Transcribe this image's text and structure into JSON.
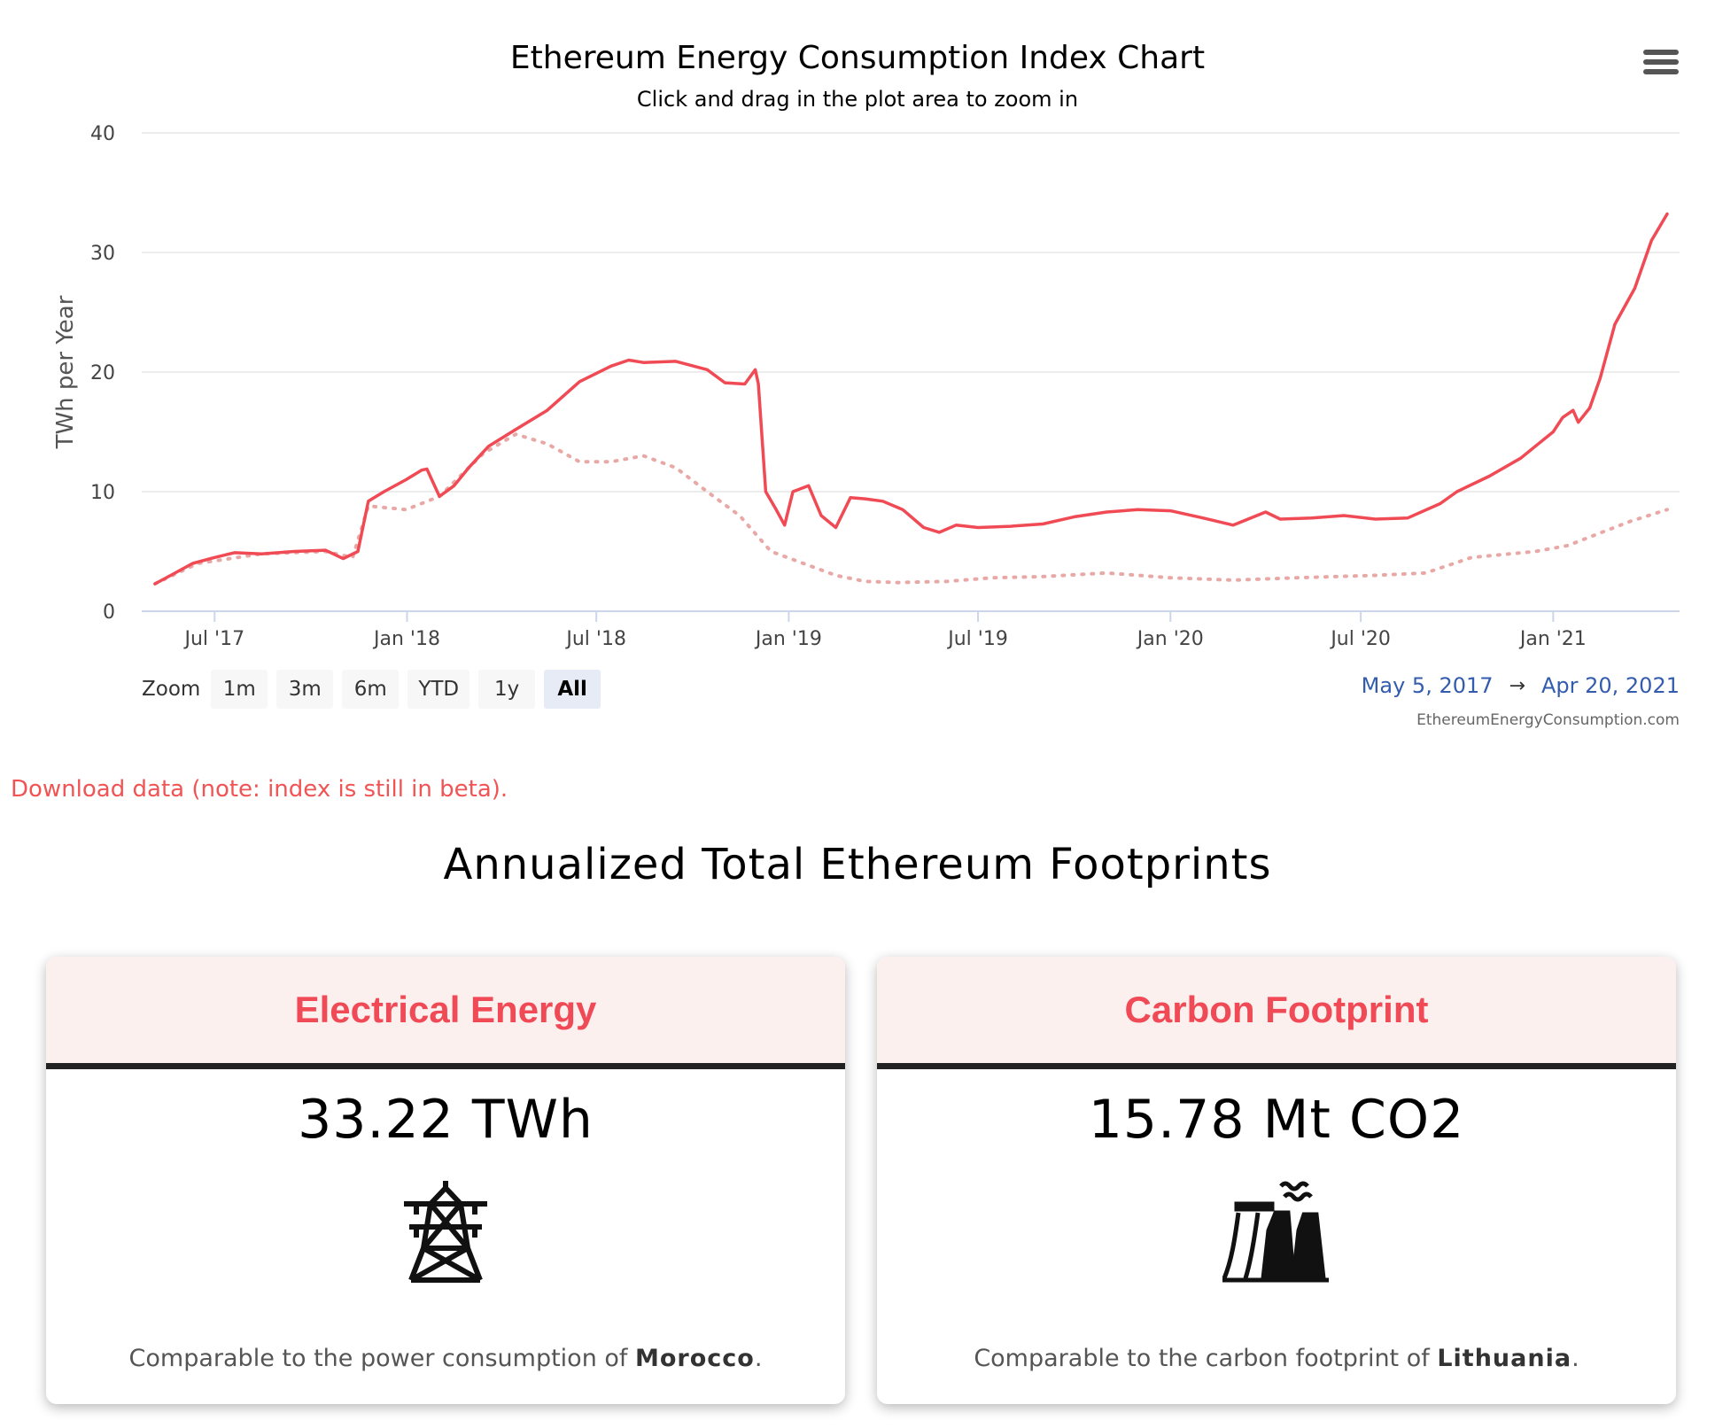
{
  "chart_data": {
    "type": "line",
    "title": "Ethereum Energy Consumption Index Chart",
    "subtitle": "Click and drag in the plot area to zoom in",
    "ylabel": "TWh per Year",
    "ylim": [
      0,
      40
    ],
    "yticks": [
      0,
      10,
      20,
      30,
      40
    ],
    "xlim": [
      "2017-05-05",
      "2021-04-20"
    ],
    "xticks": [
      {
        "date": "2017-07-01",
        "label": "Jul '17"
      },
      {
        "date": "2018-01-01",
        "label": "Jan '18"
      },
      {
        "date": "2018-07-01",
        "label": "Jul '18"
      },
      {
        "date": "2019-01-01",
        "label": "Jan '19"
      },
      {
        "date": "2019-07-01",
        "label": "Jul '19"
      },
      {
        "date": "2020-01-01",
        "label": "Jan '20"
      },
      {
        "date": "2020-07-01",
        "label": "Jul '20"
      },
      {
        "date": "2021-01-01",
        "label": "Jan '21"
      }
    ],
    "grid": true,
    "series": [
      {
        "style": "solid",
        "color": "#f04a55",
        "points": [
          [
            "2017-05-05",
            2.3
          ],
          [
            "2017-05-20",
            3.0
          ],
          [
            "2017-06-10",
            4.0
          ],
          [
            "2017-07-01",
            4.5
          ],
          [
            "2017-07-20",
            4.9
          ],
          [
            "2017-08-15",
            4.8
          ],
          [
            "2017-09-15",
            5.0
          ],
          [
            "2017-10-15",
            5.1
          ],
          [
            "2017-11-01",
            4.4
          ],
          [
            "2017-11-15",
            5.0
          ],
          [
            "2017-11-25",
            9.2
          ],
          [
            "2017-12-10",
            10.0
          ],
          [
            "2017-12-31",
            11.0
          ],
          [
            "2018-01-15",
            11.8
          ],
          [
            "2018-01-20",
            11.9
          ],
          [
            "2018-02-01",
            9.6
          ],
          [
            "2018-02-15",
            10.5
          ],
          [
            "2018-03-01",
            12.0
          ],
          [
            "2018-03-20",
            13.8
          ],
          [
            "2018-04-15",
            15.2
          ],
          [
            "2018-05-15",
            16.8
          ],
          [
            "2018-06-15",
            19.2
          ],
          [
            "2018-07-15",
            20.5
          ],
          [
            "2018-08-01",
            21.0
          ],
          [
            "2018-08-15",
            20.8
          ],
          [
            "2018-09-15",
            20.9
          ],
          [
            "2018-10-15",
            20.2
          ],
          [
            "2018-11-01",
            19.1
          ],
          [
            "2018-11-20",
            19.0
          ],
          [
            "2018-11-30",
            20.2
          ],
          [
            "2018-12-03",
            19.0
          ],
          [
            "2018-12-10",
            10.0
          ],
          [
            "2018-12-20",
            8.5
          ],
          [
            "2018-12-28",
            7.2
          ],
          [
            "2019-01-05",
            10.0
          ],
          [
            "2019-01-20",
            10.5
          ],
          [
            "2019-02-01",
            8.0
          ],
          [
            "2019-02-15",
            7.0
          ],
          [
            "2019-03-01",
            9.5
          ],
          [
            "2019-03-15",
            9.4
          ],
          [
            "2019-04-01",
            9.2
          ],
          [
            "2019-04-20",
            8.5
          ],
          [
            "2019-05-10",
            7.0
          ],
          [
            "2019-05-25",
            6.6
          ],
          [
            "2019-06-10",
            7.2
          ],
          [
            "2019-07-01",
            7.0
          ],
          [
            "2019-08-01",
            7.1
          ],
          [
            "2019-09-01",
            7.3
          ],
          [
            "2019-10-01",
            7.9
          ],
          [
            "2019-11-01",
            8.3
          ],
          [
            "2019-12-01",
            8.5
          ],
          [
            "2020-01-01",
            8.4
          ],
          [
            "2020-02-01",
            7.8
          ],
          [
            "2020-03-01",
            7.2
          ],
          [
            "2020-04-01",
            8.3
          ],
          [
            "2020-04-15",
            7.7
          ],
          [
            "2020-05-15",
            7.8
          ],
          [
            "2020-06-15",
            8.0
          ],
          [
            "2020-07-15",
            7.7
          ],
          [
            "2020-08-15",
            7.8
          ],
          [
            "2020-09-15",
            9.0
          ],
          [
            "2020-10-01",
            10.0
          ],
          [
            "2020-11-01",
            11.3
          ],
          [
            "2020-12-01",
            12.8
          ],
          [
            "2020-12-15",
            13.8
          ],
          [
            "2021-01-01",
            15.0
          ],
          [
            "2021-01-10",
            16.2
          ],
          [
            "2021-01-20",
            16.8
          ],
          [
            "2021-01-25",
            15.8
          ],
          [
            "2021-02-05",
            17.0
          ],
          [
            "2021-02-15",
            19.5
          ],
          [
            "2021-03-01",
            24.0
          ],
          [
            "2021-03-20",
            27.0
          ],
          [
            "2021-04-05",
            31.0
          ],
          [
            "2021-04-20",
            33.22
          ]
        ]
      },
      {
        "style": "dotted",
        "color": "#e8a9a6",
        "points": [
          [
            "2017-05-05",
            2.3
          ],
          [
            "2017-06-15",
            4.0
          ],
          [
            "2017-08-15",
            4.8
          ],
          [
            "2017-10-15",
            5.0
          ],
          [
            "2017-11-10",
            4.5
          ],
          [
            "2017-11-25",
            8.8
          ],
          [
            "2017-12-31",
            8.5
          ],
          [
            "2018-02-01",
            9.6
          ],
          [
            "2018-03-15",
            13.2
          ],
          [
            "2018-04-15",
            14.8
          ],
          [
            "2018-05-15",
            14.0
          ],
          [
            "2018-06-15",
            12.5
          ],
          [
            "2018-07-15",
            12.5
          ],
          [
            "2018-08-15",
            13.0
          ],
          [
            "2018-09-15",
            12.0
          ],
          [
            "2018-10-15",
            10.0
          ],
          [
            "2018-11-15",
            8.0
          ],
          [
            "2018-12-15",
            5.0
          ],
          [
            "2019-01-15",
            4.0
          ],
          [
            "2019-02-15",
            3.0
          ],
          [
            "2019-03-15",
            2.5
          ],
          [
            "2019-04-15",
            2.4
          ],
          [
            "2019-06-01",
            2.5
          ],
          [
            "2019-07-15",
            2.8
          ],
          [
            "2019-09-01",
            2.9
          ],
          [
            "2019-11-01",
            3.2
          ],
          [
            "2020-01-01",
            2.8
          ],
          [
            "2020-03-01",
            2.6
          ],
          [
            "2020-05-01",
            2.8
          ],
          [
            "2020-07-15",
            3.0
          ],
          [
            "2020-09-01",
            3.2
          ],
          [
            "2020-10-15",
            4.5
          ],
          [
            "2020-12-15",
            5.0
          ],
          [
            "2021-01-15",
            5.5
          ],
          [
            "2021-03-15",
            7.5
          ],
          [
            "2021-04-20",
            8.5
          ]
        ]
      }
    ]
  },
  "toolbar": {
    "zoom_label": "Zoom",
    "zoom_buttons": [
      "1m",
      "3m",
      "6m",
      "YTD",
      "1y",
      "All"
    ],
    "active_zoom": "All",
    "range_from": "May 5, 2017",
    "range_arrow": "→",
    "range_to": "Apr 20, 2021",
    "credits": "EthereumEnergyConsumption.com"
  },
  "download_text": "Download data (note: index is still in beta).",
  "section_title": "Annualized Total Ethereum Footprints",
  "cards": [
    {
      "title": "Electrical Energy",
      "value": "33.22 TWh",
      "icon": "power-tower-icon",
      "note_prefix": "Comparable to the power consumption of ",
      "note_country": "Morocco",
      "note_suffix": "."
    },
    {
      "title": "Carbon Footprint",
      "value": "15.78 Mt CO2",
      "icon": "power-plant-icon",
      "note_prefix": "Comparable to the carbon footprint of ",
      "note_country": "Lithuania",
      "note_suffix": "."
    }
  ],
  "colors": {
    "accent": "#f04a55",
    "secondary": "#e8a9a6",
    "link": "#335cad",
    "download": "#f05454"
  }
}
